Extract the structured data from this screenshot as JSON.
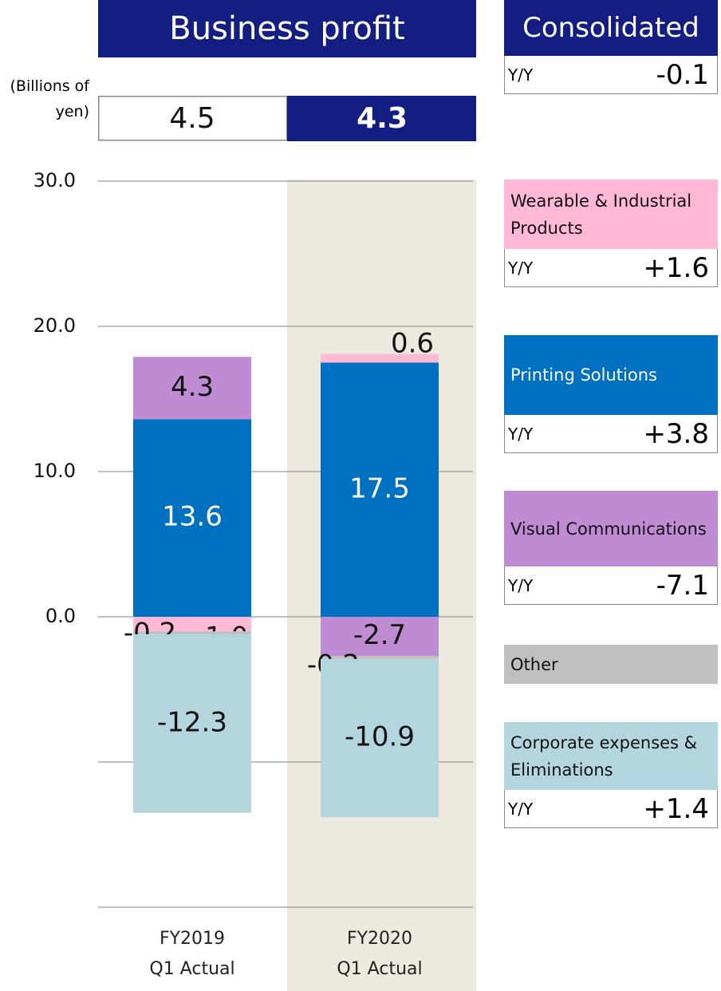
{
  "chart_data": {
    "type": "stacked_bar",
    "title": "Business profit",
    "unit_label": "(Billions of yen)",
    "categories": [
      "FY2019\nQ1 Actual",
      "FY2020\nQ1 Actual"
    ],
    "totals": [
      4.5,
      4.3
    ],
    "ylim": [
      -20,
      30
    ],
    "yticks": [
      {
        "value": 30,
        "label": "30.0"
      },
      {
        "value": 20,
        "label": "20.0"
      },
      {
        "value": 10,
        "label": "10.0"
      },
      {
        "value": 0,
        "label": "0.0"
      },
      {
        "value": -10,
        "label": null
      },
      {
        "value": -20,
        "label": null
      }
    ],
    "grid": true,
    "yoy_label": "Y/Y",
    "consolidated": {
      "name": "Consolidated",
      "yoy": "-0.1"
    },
    "series": [
      {
        "name": "Printing Solutions",
        "color": "#0070c0",
        "values": [
          13.6,
          17.5
        ],
        "value_labels": [
          "13.6",
          "17.5"
        ],
        "yoy": "+3.8"
      },
      {
        "name": "Visual Communications",
        "color": "#bf8bd3",
        "values": [
          4.3,
          -2.7
        ],
        "value_labels": [
          "4.3",
          "-2.7"
        ],
        "yoy": "-7.1"
      },
      {
        "name": "Wearable & Industrial Products",
        "color": "#ffb8d6",
        "values": [
          -1.0,
          0.6
        ],
        "value_labels": [
          "-1.0",
          "0.6"
        ],
        "yoy": "+1.6"
      },
      {
        "name": "Other",
        "color": "#bfbfbf",
        "values": [
          -0.2,
          -0.2
        ],
        "value_labels": [
          "-0.2",
          "-0.2"
        ],
        "yoy": null
      },
      {
        "name": "Corporate expenses & Eliminations",
        "color": "#b3d6de",
        "values": [
          -12.3,
          -10.9
        ],
        "value_labels": [
          "-12.3",
          "-10.9"
        ],
        "yoy": "+1.4"
      }
    ]
  }
}
